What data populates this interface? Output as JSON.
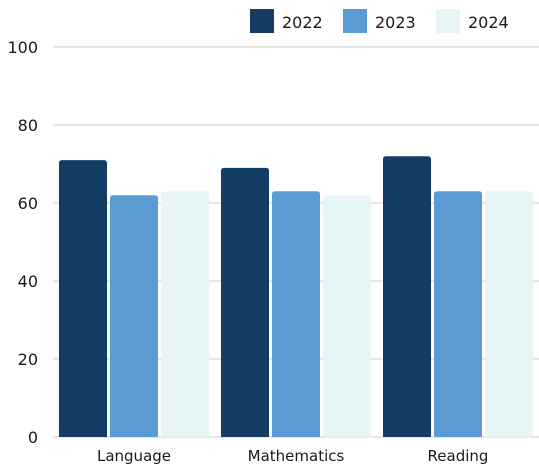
{
  "chart_data": {
    "type": "bar",
    "categories": [
      "Language",
      "Mathematics",
      "Reading"
    ],
    "series": [
      {
        "name": "2022",
        "values": [
          71,
          69,
          72
        ],
        "color": "#143d66"
      },
      {
        "name": "2023",
        "values": [
          62,
          63,
          63
        ],
        "color": "#5b9bd5"
      },
      {
        "name": "2024",
        "values": [
          63,
          62,
          63
        ],
        "color": "#e8f5f7"
      }
    ],
    "ylim": [
      0,
      100
    ],
    "yticks": [
      "0",
      "20",
      "40",
      "60",
      "80",
      "100"
    ],
    "grid": true,
    "legend_position": "top-right",
    "title": "",
    "xlabel": "",
    "ylabel": ""
  }
}
